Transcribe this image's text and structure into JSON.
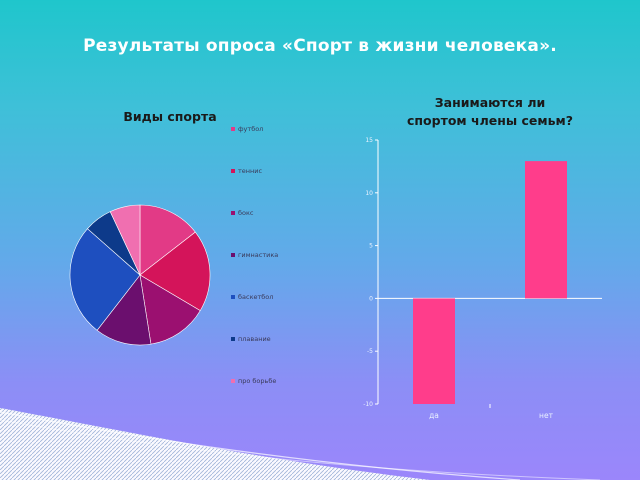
{
  "slide": {
    "title": "Результаты опроса «Спорт в жизни человека»."
  },
  "chart_data": [
    {
      "type": "pie",
      "title": "Виды спорта",
      "slices": [
        {
          "label": "футбол",
          "value": 14.5,
          "color": "#e23a86"
        },
        {
          "label": "теннис",
          "value": 19,
          "color": "#d4145a"
        },
        {
          "label": "бокс",
          "value": 14,
          "color": "#9b1070"
        },
        {
          "label": "гимнастика",
          "value": 13,
          "color": "#6b0f6e"
        },
        {
          "label": "баскетбол",
          "value": 26,
          "color": "#1e4fbf"
        },
        {
          "label": "плавание",
          "value": 6.5,
          "color": "#0d3a8a"
        },
        {
          "label": "про борьбе",
          "value": 7,
          "color": "#f06fb0"
        }
      ],
      "legend_position": "right"
    },
    {
      "type": "bar",
      "title_lines": [
        "Занимаются ли",
        "спортом члены семьм?"
      ],
      "categories": [
        "да",
        "нет"
      ],
      "values": [
        -10,
        13
      ],
      "ylim": [
        -10,
        15
      ],
      "yticks": [
        "-10",
        "-5",
        "0",
        "5",
        "10",
        "15"
      ],
      "bar_color": "#ff3d8b",
      "grid": false
    }
  ]
}
